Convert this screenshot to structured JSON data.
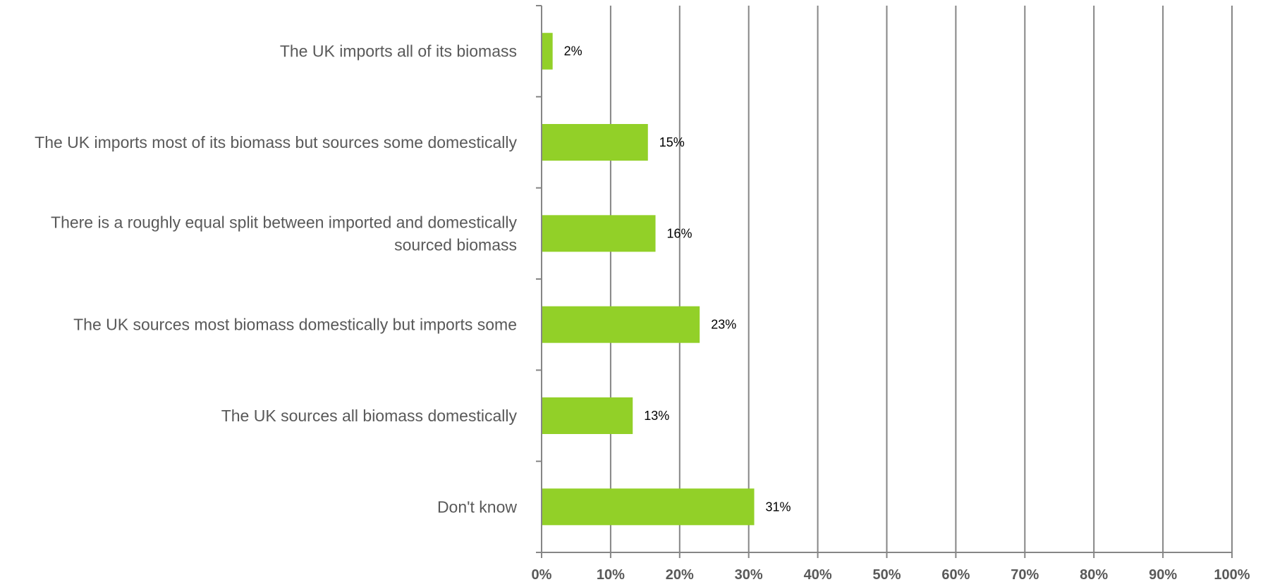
{
  "chart_data": {
    "type": "bar",
    "orientation": "horizontal",
    "categories": [
      [
        "The UK imports all of its biomass"
      ],
      [
        "The UK imports most of its biomass but sources some domestically"
      ],
      [
        "There is a roughly equal split between imported and domestically",
        "sourced biomass"
      ],
      [
        "The UK sources most biomass domestically but imports some"
      ],
      [
        "The UK sources all biomass domestically"
      ],
      [
        "Don't know"
      ]
    ],
    "values": [
      1.6,
      15.4,
      16.5,
      22.9,
      13.2,
      30.8
    ],
    "data_labels": [
      "2%",
      "15%",
      "16%",
      "23%",
      "13%",
      "31%"
    ],
    "xlim": [
      0,
      100
    ],
    "x_ticks": [
      0,
      10,
      20,
      30,
      40,
      50,
      60,
      70,
      80,
      90,
      100
    ],
    "x_tick_labels": [
      "0%",
      "10%",
      "20%",
      "30%",
      "40%",
      "50%",
      "60%",
      "70%",
      "80%",
      "90%",
      "100%"
    ],
    "grid": "vertical",
    "legend": "none",
    "title": "",
    "xlabel": "",
    "ylabel": "",
    "bar_color": "#92d028",
    "grid_color": "#868686"
  }
}
